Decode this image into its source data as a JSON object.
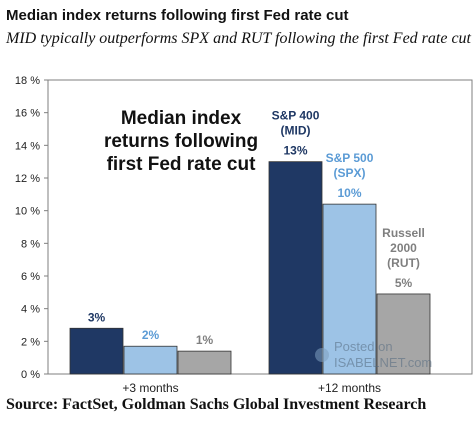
{
  "header": {
    "title": "Median index returns following first Fed rate cut",
    "subtitle": "MID typically outperforms SPX and RUT following the first Fed rate cut"
  },
  "watermark": {
    "line1": "Posted on",
    "line2": "ISABELNET.com"
  },
  "source": "Source: FactSet, Goldman Sachs Global Investment Research",
  "chart_data": {
    "type": "bar",
    "title": "Median index returns following first Fed rate cut",
    "categories": [
      "+3 months",
      "+12 months"
    ],
    "series": [
      {
        "name": "S&P 400 (MID)",
        "values": [
          2.8,
          13.0
        ],
        "labels": [
          "3%",
          "13%"
        ],
        "color": "#1f3864",
        "labelColor": "#1f3864"
      },
      {
        "name": "S&P 500 (SPX)",
        "values": [
          1.7,
          10.4
        ],
        "labels": [
          "2%",
          "10%"
        ],
        "color": "#9dc3e6",
        "labelColor": "#5b9bd5"
      },
      {
        "name": "Russell 2000 (RUT)",
        "values": [
          1.4,
          4.9
        ],
        "labels": [
          "1%",
          "5%"
        ],
        "color": "#a6a6a6",
        "labelColor": "#7f7f7f"
      }
    ],
    "ylim": [
      0,
      18
    ],
    "yticks": [
      0,
      2,
      4,
      6,
      8,
      10,
      12,
      14,
      16,
      18
    ],
    "ytick_labels": [
      "0 %",
      "2 %",
      "4 %",
      "6 %",
      "8 %",
      "10 %",
      "12 %",
      "14 %",
      "16 %",
      "18 %"
    ],
    "series_annotations": [
      {
        "lines": [
          "S&P 400",
          "(MID)"
        ],
        "color": "#1f3864"
      },
      {
        "lines": [
          "S&P 500",
          "(SPX)"
        ],
        "color": "#5b9bd5"
      },
      {
        "lines": [
          "Russell",
          "2000",
          "(RUT)"
        ],
        "color": "#7f7f7f"
      }
    ],
    "grid": false,
    "legend": "none"
  }
}
